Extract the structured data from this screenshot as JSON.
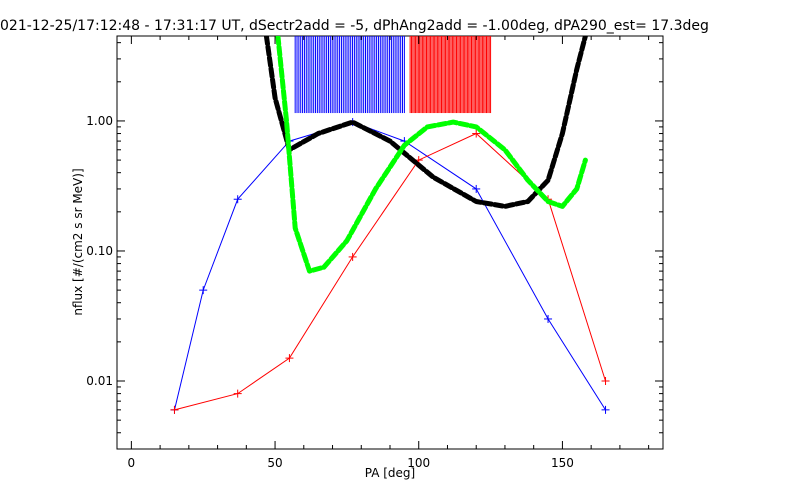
{
  "chart_data": {
    "type": "line",
    "title": "021-12-25/17:12:48 - 17:31:17 UT, dSectr2add = -5, dPhAng2add = -1.00deg, dPA290_est=  17.3deg",
    "xlabel": "PA [deg]",
    "ylabel": "nflux [#/(cm2 s sr MeV)]",
    "xlim": [
      -5,
      185
    ],
    "ylim": [
      0.003,
      4.5
    ],
    "y_scale": "log",
    "x_ticks": [
      0,
      50,
      100,
      150
    ],
    "x_tick_labels": [
      "0",
      "50",
      "100",
      "150"
    ],
    "y_ticks": [
      1.0,
      0.1,
      0.01
    ],
    "y_tick_labels": [
      "1.00",
      "0.10",
      "0.01"
    ],
    "grid": false,
    "colors": {
      "blue": "#0000ff",
      "red": "#ff0000",
      "black": "#000000",
      "green": "#00ff00"
    },
    "series": [
      {
        "color": "blue",
        "style": "lines+plus",
        "x": [
          15,
          25,
          37,
          55,
          77,
          95,
          120,
          145,
          165
        ],
        "y": [
          0.006,
          0.05,
          0.25,
          0.7,
          0.98,
          0.7,
          0.3,
          0.03,
          0.006
        ]
      },
      {
        "color": "red",
        "style": "lines+plus",
        "x": [
          15,
          37,
          55,
          77,
          100,
          120,
          145,
          165
        ],
        "y": [
          0.006,
          0.008,
          0.015,
          0.09,
          0.5,
          0.8,
          0.25,
          0.01
        ]
      },
      {
        "color": "black",
        "style": "thick-dashed",
        "x": [
          47,
          50,
          55,
          65,
          77,
          90,
          105,
          120,
          130,
          138,
          145,
          150,
          155,
          158
        ],
        "y": [
          4.5,
          1.5,
          0.6,
          0.8,
          0.98,
          0.7,
          0.37,
          0.24,
          0.22,
          0.24,
          0.35,
          0.8,
          2.5,
          4.5
        ]
      },
      {
        "color": "green",
        "style": "thick-dashed",
        "x": [
          51,
          54,
          57,
          62,
          67,
          75,
          85,
          95,
          103,
          112,
          120,
          130,
          138,
          145,
          150,
          155,
          158
        ],
        "y": [
          4.5,
          1.0,
          0.15,
          0.07,
          0.075,
          0.12,
          0.3,
          0.65,
          0.9,
          0.98,
          0.9,
          0.6,
          0.35,
          0.24,
          0.22,
          0.3,
          0.5
        ]
      }
    ],
    "vertical_markers": [
      {
        "color": "blue",
        "x_start": 57,
        "x_end": 95,
        "count": 60
      },
      {
        "color": "red",
        "x_start": 97,
        "x_end": 125,
        "count": 60
      }
    ]
  }
}
